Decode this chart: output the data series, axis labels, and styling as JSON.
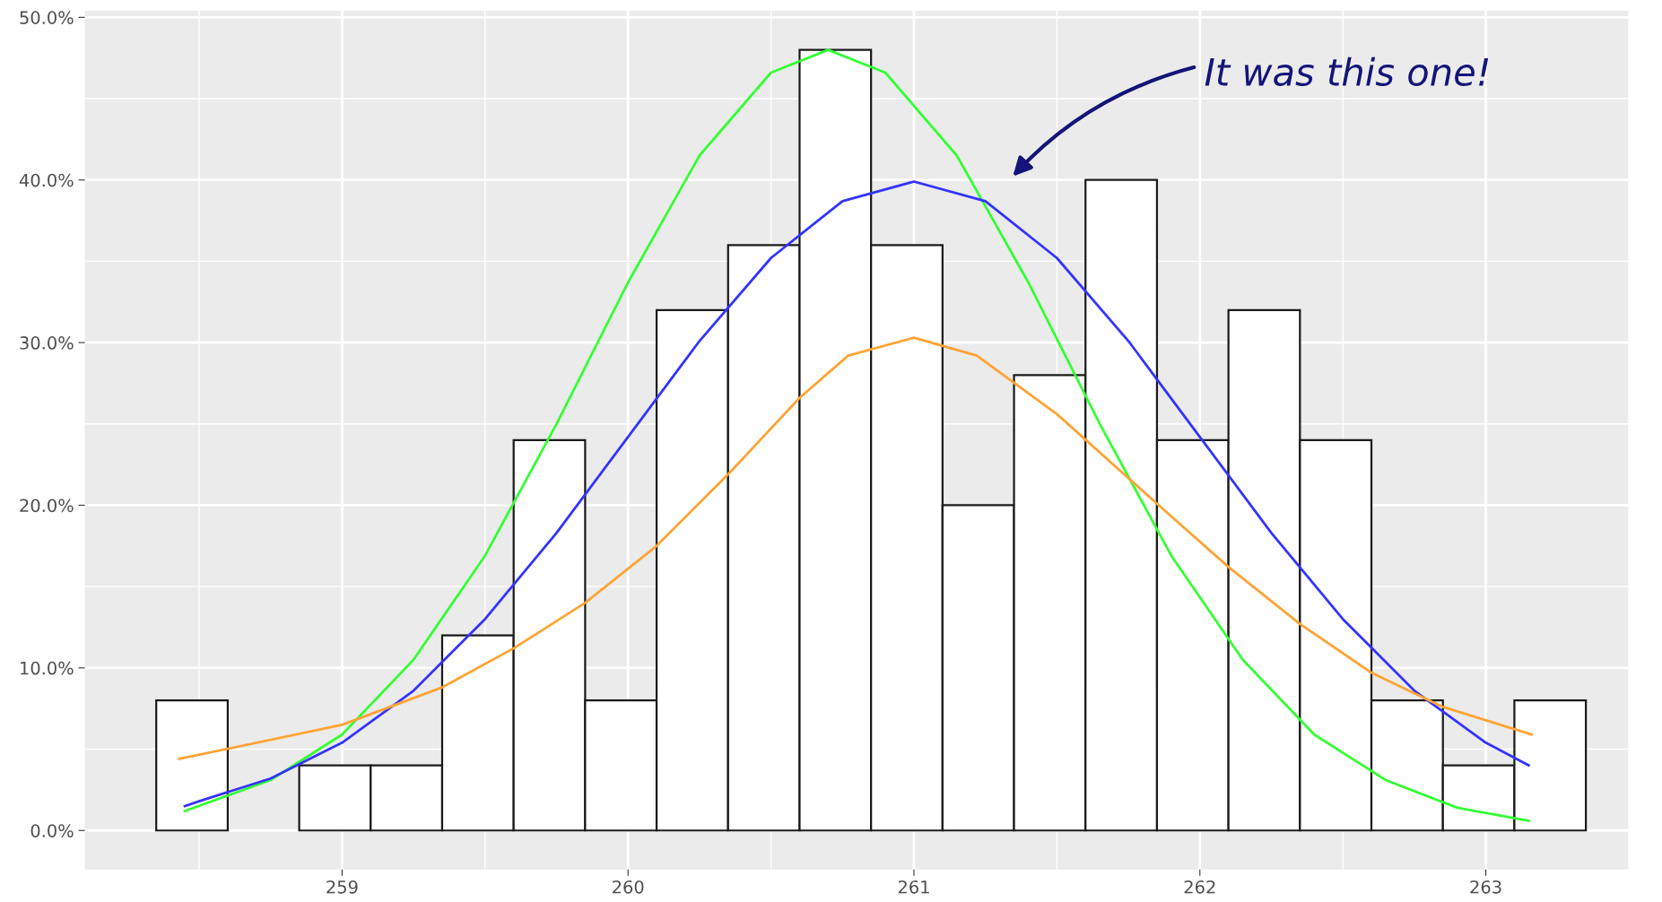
{
  "chart_data": {
    "type": "histogram",
    "bins": [
      258.35,
      258.6,
      258.85,
      259.1,
      259.35,
      259.6,
      259.85,
      260.1,
      260.35,
      260.6,
      260.85,
      261.1,
      261.35,
      261.6,
      261.85,
      262.1,
      262.35,
      262.6,
      262.85,
      263.1,
      263.35
    ],
    "values": [
      8,
      0,
      4,
      4,
      12,
      24,
      8,
      32,
      36,
      48,
      36,
      20,
      28,
      40,
      24,
      32,
      24,
      8,
      4,
      8
    ],
    "color": "#ffffff",
    "series": [
      {
        "type": "line",
        "color": "#33ff33",
        "x": [
          258.45,
          258.75,
          259.0,
          259.25,
          259.5,
          259.75,
          260.0,
          260.25,
          260.5,
          260.7,
          260.9,
          261.15,
          261.4,
          261.65,
          261.9,
          262.15,
          262.4,
          262.65,
          262.9,
          263.15
        ],
        "values": [
          1.2,
          3.1,
          5.9,
          10.5,
          16.9,
          25.0,
          33.7,
          41.5,
          46.6,
          48.0,
          46.6,
          41.5,
          33.7,
          25.0,
          16.9,
          10.5,
          5.9,
          3.1,
          1.4,
          0.6
        ]
      },
      {
        "type": "line",
        "color": "#3333ff",
        "x": [
          258.45,
          258.5,
          258.75,
          259.0,
          259.25,
          259.5,
          259.75,
          260.0,
          260.25,
          260.5,
          260.75,
          261.0,
          261.25,
          261.5,
          261.75,
          262.0,
          262.25,
          262.5,
          262.75,
          263.0,
          263.15
        ],
        "values": [
          1.5,
          1.8,
          3.2,
          5.4,
          8.6,
          13.0,
          18.3,
          24.2,
          30.1,
          35.2,
          38.7,
          39.9,
          38.7,
          35.2,
          30.1,
          24.2,
          18.3,
          13.0,
          8.6,
          5.4,
          4.0
        ]
      },
      {
        "type": "line",
        "color": "#ffa333",
        "x": [
          258.43,
          259.0,
          259.35,
          259.6,
          259.85,
          260.1,
          260.35,
          260.6,
          260.77,
          261.0,
          261.22,
          261.5,
          261.85,
          262.1,
          262.35,
          262.6,
          262.85,
          263.16
        ],
        "values": [
          4.4,
          6.5,
          8.8,
          11.2,
          14.0,
          17.5,
          21.9,
          26.6,
          29.2,
          30.3,
          29.2,
          25.6,
          20.1,
          16.2,
          12.7,
          9.7,
          7.6,
          5.9
        ]
      }
    ],
    "annotations": [
      "It was this one!"
    ],
    "xlim": [
      258.1,
      263.5
    ],
    "xticks": [
      259,
      260,
      261,
      262,
      263
    ],
    "ylim": [
      -2.4,
      50.4
    ],
    "yticks": [
      {
        "value": 0,
        "label": "0.0%"
      },
      {
        "value": 10,
        "label": "10.0%"
      },
      {
        "value": 20,
        "label": "20.0%"
      },
      {
        "value": 30,
        "label": "30.0%"
      },
      {
        "value": 40,
        "label": "40.0%"
      },
      {
        "value": 50,
        "label": "50.0%"
      }
    ],
    "grid": true
  }
}
